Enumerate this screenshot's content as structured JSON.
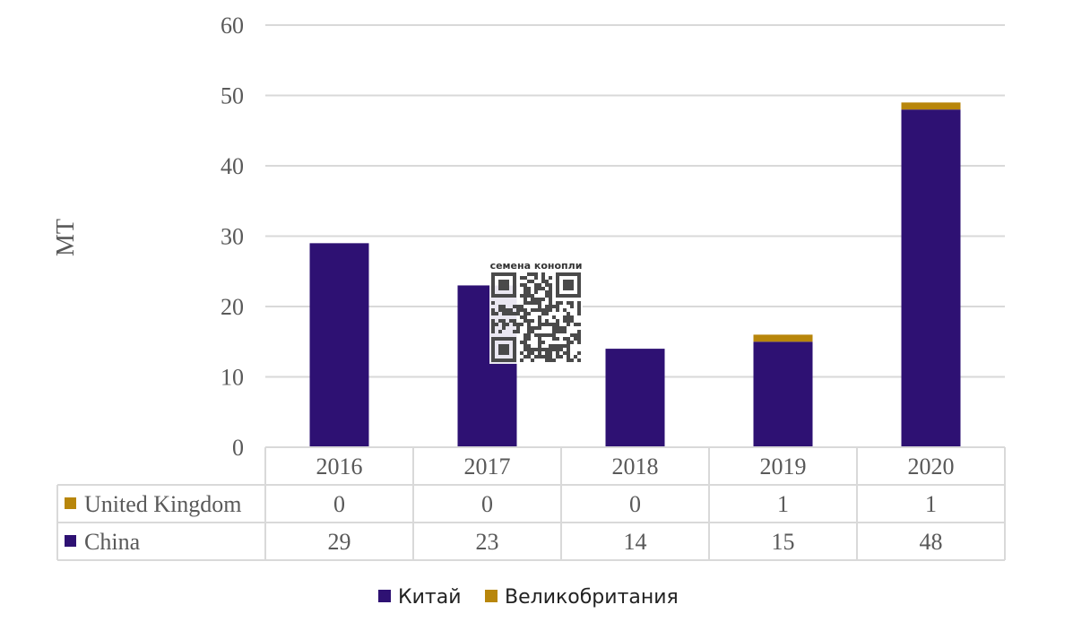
{
  "chart_data": {
    "type": "bar",
    "stacked": true,
    "categories": [
      "2016",
      "2017",
      "2018",
      "2019",
      "2020"
    ],
    "series": [
      {
        "name": "China",
        "values": [
          29,
          23,
          14,
          15,
          48
        ],
        "color": "#2e1173"
      },
      {
        "name": "United Kingdom",
        "values": [
          0,
          0,
          0,
          1,
          1
        ],
        "color": "#b8860b"
      }
    ],
    "ylabel": "MT",
    "ylim": [
      0,
      60
    ],
    "yticks": [
      0,
      10,
      20,
      30,
      40,
      50,
      60
    ],
    "grid": true,
    "data_table": true,
    "legend": {
      "position": "bottom",
      "entries": [
        {
          "label": "Китай",
          "color": "#2e1173"
        },
        {
          "label": "Великобритания",
          "color": "#b8860b"
        }
      ]
    }
  },
  "watermark": {
    "caption": "семена конопли",
    "type": "qr-code"
  }
}
